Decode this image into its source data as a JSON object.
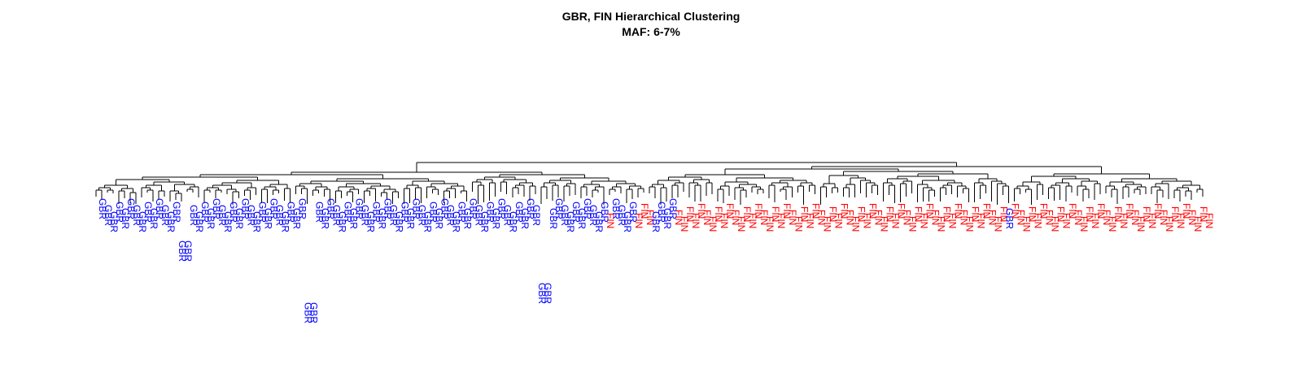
{
  "chart_data": {
    "type": "dendrogram",
    "title": "GBR, FIN Hierarchical Clustering",
    "subtitle": "MAF: 6-7%",
    "groups": [
      {
        "name": "GBR",
        "color": "#0000ff"
      },
      {
        "name": "FIN",
        "color": "#ff0000"
      }
    ],
    "leaf_order": [
      "GBR",
      "GBR",
      "GBR",
      "GBR",
      "GBR",
      "GBR",
      "GBR",
      "GBR",
      "GBR",
      "GBR",
      "GBR",
      "GBR",
      "GBR",
      "GBR",
      "GBR",
      "GBR",
      "GBR",
      "GBR",
      "GBR",
      "GBR",
      "GBR",
      "GBR",
      "GBR",
      "GBR",
      "GBR",
      "GBR",
      "GBR",
      "GBR",
      "GBR",
      "GBR",
      "GBR",
      "GBR",
      "GBR",
      "GBR",
      "GBR",
      "GBR",
      "GBR",
      "GBR",
      "GBR",
      "GBR",
      "GBR",
      "GBR",
      "GBR",
      "GBR",
      "GBR",
      "GBR",
      "GBR",
      "GBR",
      "GBR",
      "GBR",
      "GBR",
      "GBR",
      "GBR",
      "GBR",
      "GBR",
      "GBR",
      "GBR",
      "GBR",
      "GBR",
      "GBR",
      "GBR",
      "GBR",
      "GBR",
      "GBR",
      "GBR",
      "GBR",
      "GBR",
      "GBR",
      "GBR",
      "GBR",
      "GBR",
      "GBR",
      "GBR",
      "GBR",
      "GBR",
      "GBR",
      "GBR",
      "GBR",
      "GBR",
      "GBR",
      "GBR",
      "GBR",
      "GBR",
      "GBR",
      "GBR",
      "GBR",
      "GBR",
      "GBR",
      "GBR",
      "FIN",
      "GBR",
      "GBR",
      "GBR",
      "GBR",
      "FIN",
      "FIN",
      "FIN",
      "GBR",
      "GBR",
      "GBR",
      "GBR",
      "FIN",
      "FIN",
      "FIN",
      "FIN",
      "FIN",
      "FIN",
      "FIN",
      "FIN",
      "FIN",
      "FIN",
      "FIN",
      "FIN",
      "FIN",
      "FIN",
      "FIN",
      "FIN",
      "FIN",
      "FIN",
      "FIN",
      "FIN",
      "FIN",
      "FIN",
      "FIN",
      "FIN",
      "FIN",
      "FIN",
      "FIN",
      "FIN",
      "FIN",
      "FIN",
      "FIN",
      "FIN",
      "FIN",
      "FIN",
      "FIN",
      "FIN",
      "FIN",
      "FIN",
      "FIN",
      "FIN",
      "FIN",
      "FIN",
      "FIN",
      "FIN",
      "FIN",
      "FIN",
      "FIN",
      "FIN",
      "FIN",
      "FIN",
      "FIN",
      "FIN",
      "FIN",
      "FIN",
      "FIN",
      "FIN",
      "FIN",
      "FIN",
      "GBR",
      "FIN",
      "FIN",
      "FIN",
      "FIN",
      "FIN",
      "FIN",
      "FIN",
      "FIN",
      "FIN",
      "FIN",
      "FIN",
      "FIN",
      "FIN",
      "FIN",
      "FIN",
      "FIN",
      "FIN",
      "FIN",
      "FIN",
      "FIN",
      "FIN",
      "FIN",
      "FIN",
      "FIN",
      "FIN",
      "FIN",
      "FIN",
      "FIN",
      "FIN",
      "FIN",
      "FIN",
      "FIN",
      "FIN",
      "FIN",
      "FIN"
    ],
    "axes_shown": false,
    "grid": false,
    "legend": "none"
  }
}
